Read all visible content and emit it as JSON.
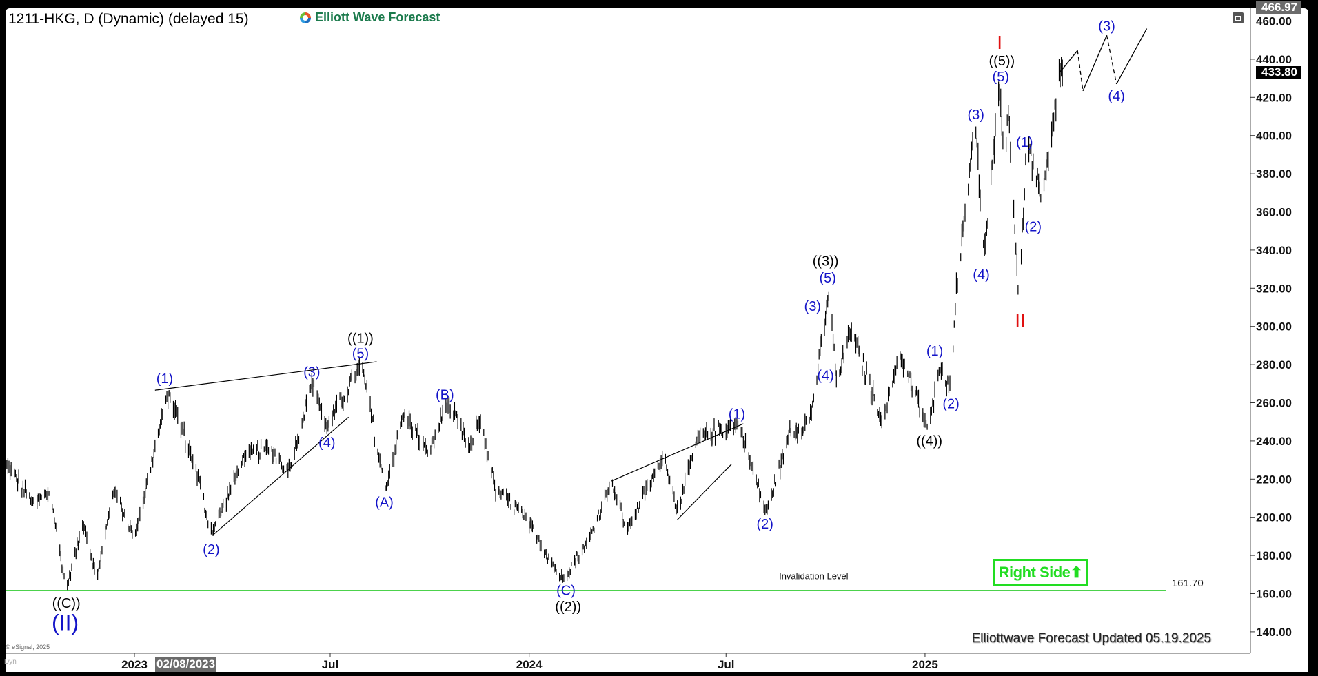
{
  "header": {
    "title": "1211-HKG, D (Dynamic) (delayed 15)",
    "logo_text": "Elliott Wave Forecast"
  },
  "price_axis": {
    "ticks": [
      "140.00",
      "160.00",
      "180.00",
      "200.00",
      "220.00",
      "240.00",
      "260.00",
      "280.00",
      "300.00",
      "320.00",
      "340.00",
      "360.00",
      "380.00",
      "400.00",
      "420.00",
      "440.00",
      "460.00"
    ],
    "high_tag": "466.97",
    "last_price_tag": "433.80"
  },
  "time_axis": {
    "labels": [
      {
        "text": "2023",
        "date": "2023-01-01"
      },
      {
        "text": "Jul",
        "date": "2023-07-01"
      },
      {
        "text": "2024",
        "date": "2024-01-01"
      },
      {
        "text": "Jul",
        "date": "2024-07-01"
      },
      {
        "text": "2025",
        "date": "2025-01-01"
      }
    ],
    "cursor_label": "02/08/2023"
  },
  "annotations": {
    "invalidation_label": "Invalidation Level",
    "invalidation_value": "161.70",
    "right_side_label": "Right Side",
    "updated_text": "Elliottwave Forecast Updated 05.19.2025",
    "copyright": "© eSignal, 2025",
    "dyn_label": "Dyn"
  },
  "colors": {
    "wave_blue": "#1414c8",
    "wave_black": "#000000",
    "wave_red": "#e01010",
    "invalidation_line": "#33cc33",
    "right_side": "#22dd22",
    "logo_green": "#1b7a4c"
  },
  "chart_data": {
    "type": "ohlc",
    "ylim": [
      130,
      470
    ],
    "grid": false,
    "invalidation_level": 161.7,
    "last_price": 433.8,
    "price_path": [
      {
        "date": "2022-09-03",
        "price": 229
      },
      {
        "date": "2022-09-30",
        "price": 207
      },
      {
        "date": "2022-10-15",
        "price": 213
      },
      {
        "date": "2022-10-30",
        "price": 162
      },
      {
        "date": "2022-11-15",
        "price": 198
      },
      {
        "date": "2022-11-27",
        "price": 167
      },
      {
        "date": "2022-12-13",
        "price": 215
      },
      {
        "date": "2023-01-01",
        "price": 189
      },
      {
        "date": "2023-02-01",
        "price": 266
      },
      {
        "date": "2023-02-28",
        "price": 224
      },
      {
        "date": "2023-03-13",
        "price": 191
      },
      {
        "date": "2023-04-12",
        "price": 231
      },
      {
        "date": "2023-05-05",
        "price": 237
      },
      {
        "date": "2023-05-24",
        "price": 224
      },
      {
        "date": "2023-06-15",
        "price": 273
      },
      {
        "date": "2023-06-27",
        "price": 246
      },
      {
        "date": "2023-07-30",
        "price": 281
      },
      {
        "date": "2023-08-21",
        "price": 214
      },
      {
        "date": "2023-09-07",
        "price": 255
      },
      {
        "date": "2023-09-30",
        "price": 233
      },
      {
        "date": "2023-10-17",
        "price": 260
      },
      {
        "date": "2023-11-08",
        "price": 235
      },
      {
        "date": "2023-11-16",
        "price": 253
      },
      {
        "date": "2023-12-01",
        "price": 215
      },
      {
        "date": "2024-01-01",
        "price": 198
      },
      {
        "date": "2024-01-31",
        "price": 167
      },
      {
        "date": "2024-02-25",
        "price": 188
      },
      {
        "date": "2024-03-17",
        "price": 219
      },
      {
        "date": "2024-03-31",
        "price": 193
      },
      {
        "date": "2024-05-05",
        "price": 233
      },
      {
        "date": "2024-05-17",
        "price": 202
      },
      {
        "date": "2024-06-05",
        "price": 242
      },
      {
        "date": "2024-07-13",
        "price": 249
      },
      {
        "date": "2024-08-07",
        "price": 202
      },
      {
        "date": "2024-08-29",
        "price": 244
      },
      {
        "date": "2024-09-17",
        "price": 251
      },
      {
        "date": "2024-10-05",
        "price": 320
      },
      {
        "date": "2024-10-11",
        "price": 268
      },
      {
        "date": "2024-10-24",
        "price": 299
      },
      {
        "date": "2024-11-23",
        "price": 249
      },
      {
        "date": "2024-12-08",
        "price": 286
      },
      {
        "date": "2025-01-04",
        "price": 246
      },
      {
        "date": "2025-01-16",
        "price": 281
      },
      {
        "date": "2025-01-24",
        "price": 266
      },
      {
        "date": "2025-01-30",
        "price": 317
      },
      {
        "date": "2025-02-16",
        "price": 409
      },
      {
        "date": "2025-02-25",
        "price": 337
      },
      {
        "date": "2025-03-11",
        "price": 427
      },
      {
        "date": "2025-03-16",
        "price": 386
      },
      {
        "date": "2025-03-19",
        "price": 416
      },
      {
        "date": "2025-03-29",
        "price": 310
      },
      {
        "date": "2025-04-05",
        "price": 398
      },
      {
        "date": "2025-04-19",
        "price": 365
      },
      {
        "date": "2025-04-27",
        "price": 394
      },
      {
        "date": "2025-05-06",
        "price": 438
      },
      {
        "date": "2025-05-08",
        "price": 433.8
      }
    ],
    "forecast_path": [
      {
        "date": "2025-05-06",
        "price": 433.4,
        "style": "solid"
      },
      {
        "date": "2025-05-22",
        "price": 444.6,
        "style": "dashed"
      },
      {
        "date": "2025-05-27",
        "price": 423.4,
        "style": "solid"
      },
      {
        "date": "2025-06-18",
        "price": 452.5,
        "style": "dashed"
      },
      {
        "date": "2025-06-27",
        "price": 427.0,
        "style": "solid"
      },
      {
        "date": "2025-07-25",
        "price": 456.0
      }
    ],
    "trendlines": [
      {
        "from": {
          "date": "2023-01-20",
          "price": 266.6
        },
        "to": {
          "date": "2023-08-13",
          "price": 281.5
        }
      },
      {
        "from": {
          "date": "2023-03-14",
          "price": 190.4
        },
        "to": {
          "date": "2023-07-18",
          "price": 252.5
        }
      },
      {
        "from": {
          "date": "2024-03-17",
          "price": 219.0
        },
        "to": {
          "date": "2024-07-17",
          "price": 249.0
        }
      },
      {
        "from": {
          "date": "2024-05-17",
          "price": 198.8
        },
        "to": {
          "date": "2024-07-06",
          "price": 227.8
        }
      }
    ],
    "wave_labels": [
      {
        "text": "((C))",
        "date": "2022-10-30",
        "price": 155.2,
        "color": "black"
      },
      {
        "text": "(II)",
        "date": "2022-10-29",
        "price": 145.0,
        "color": "blue",
        "size": "large"
      },
      {
        "text": "(1)",
        "date": "2023-01-29",
        "price": 272.8,
        "color": "blue"
      },
      {
        "text": "(2)",
        "date": "2023-03-13",
        "price": 183.3,
        "color": "blue"
      },
      {
        "text": "(3)",
        "date": "2023-06-14",
        "price": 276.3,
        "color": "blue"
      },
      {
        "text": "(4)",
        "date": "2023-06-28",
        "price": 239.3,
        "color": "blue"
      },
      {
        "text": "(5)",
        "date": "2023-07-29",
        "price": 286.0,
        "color": "blue"
      },
      {
        "text": "((1))",
        "date": "2023-07-29",
        "price": 294.0,
        "color": "black"
      },
      {
        "text": "(A)",
        "date": "2023-08-20",
        "price": 208.0,
        "color": "blue"
      },
      {
        "text": "(B)",
        "date": "2023-10-15",
        "price": 264.4,
        "color": "blue"
      },
      {
        "text": "(C)",
        "date": "2024-02-04",
        "price": 161.8,
        "color": "blue"
      },
      {
        "text": "((2))",
        "date": "2024-02-06",
        "price": 153.4,
        "color": "black"
      },
      {
        "text": "(1)",
        "date": "2024-07-11",
        "price": 254.3,
        "color": "blue"
      },
      {
        "text": "(2)",
        "date": "2024-08-06",
        "price": 196.6,
        "color": "blue"
      },
      {
        "text": "(3)",
        "date": "2024-09-19",
        "price": 310.7,
        "color": "blue"
      },
      {
        "text": "(5)",
        "date": "2024-10-03",
        "price": 325.6,
        "color": "blue"
      },
      {
        "text": "((3))",
        "date": "2024-10-01",
        "price": 334.4,
        "color": "black"
      },
      {
        "text": "(4)",
        "date": "2024-10-01",
        "price": 274.5,
        "color": "blue"
      },
      {
        "text": "((4))",
        "date": "2025-01-05",
        "price": 240.2,
        "color": "black"
      },
      {
        "text": "(1)",
        "date": "2025-01-10",
        "price": 287.3,
        "color": "blue"
      },
      {
        "text": "(2)",
        "date": "2025-01-25",
        "price": 259.6,
        "color": "blue"
      },
      {
        "text": "(3)",
        "date": "2025-02-17",
        "price": 411.1,
        "color": "blue"
      },
      {
        "text": "(4)",
        "date": "2025-02-22",
        "price": 327.4,
        "color": "blue"
      },
      {
        "text": "(5)",
        "date": "2025-03-12",
        "price": 431.0,
        "color": "blue"
      },
      {
        "text": "((5))",
        "date": "2025-03-13",
        "price": 439.3,
        "color": "black"
      },
      {
        "text": "I",
        "date": "2025-03-11",
        "price": 449.0,
        "color": "red"
      },
      {
        "text": "(1)",
        "date": "2025-04-03",
        "price": 396.6,
        "color": "blue"
      },
      {
        "text": "(2)",
        "date": "2025-04-11",
        "price": 352.5,
        "color": "blue"
      },
      {
        "text": "II",
        "date": "2025-03-30",
        "price": 303.2,
        "color": "red"
      },
      {
        "text": "(3)",
        "date": "2025-06-18",
        "price": 457.4,
        "color": "blue"
      },
      {
        "text": "(4)",
        "date": "2025-06-27",
        "price": 420.8,
        "color": "blue"
      }
    ],
    "invalidation_line_end": "2025-08-12",
    "invalidation_label_anchor": {
      "date": "2024-09-20",
      "price": 167.5
    }
  }
}
